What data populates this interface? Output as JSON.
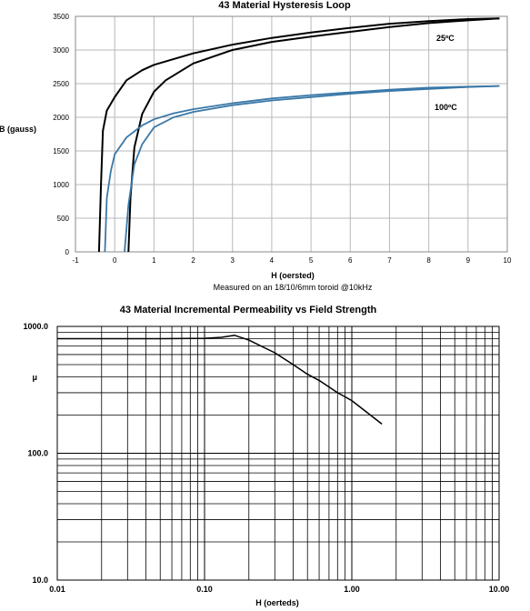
{
  "chart_data": [
    {
      "type": "line",
      "title": "43 Material Hysteresis Loop",
      "xlabel": "H (oersted)",
      "ylabel": "B (gauss)",
      "note": "Measured on an 18/10/6mm toroid @10kHz",
      "xlim": [
        -1,
        10
      ],
      "ylim": [
        0,
        3500
      ],
      "xticks": [
        "-1",
        "0",
        "1",
        "2",
        "3",
        "4",
        "5",
        "6",
        "7",
        "8",
        "9",
        "10"
      ],
      "yticks": [
        "0",
        "500",
        "1000",
        "1500",
        "2000",
        "2500",
        "3000",
        "3500"
      ],
      "grid": true,
      "colors": {
        "series_25": "#000000",
        "series_100": "#3a78a8"
      },
      "series": [
        {
          "name": "25ºC",
          "upper": [
            [
              -0.4,
              0
            ],
            [
              -0.35,
              1000
            ],
            [
              -0.3,
              1800
            ],
            [
              -0.2,
              2100
            ],
            [
              0,
              2300
            ],
            [
              0.3,
              2550
            ],
            [
              0.7,
              2700
            ],
            [
              1,
              2780
            ],
            [
              2,
              2950
            ],
            [
              3,
              3080
            ],
            [
              4,
              3180
            ],
            [
              5,
              3260
            ],
            [
              6,
              3330
            ],
            [
              7,
              3390
            ],
            [
              8,
              3430
            ],
            [
              9,
              3460
            ],
            [
              9.8,
              3470
            ]
          ],
          "lower": [
            [
              9.8,
              3470
            ],
            [
              9,
              3440
            ],
            [
              8,
              3400
            ],
            [
              7,
              3340
            ],
            [
              6,
              3270
            ],
            [
              5,
              3200
            ],
            [
              4,
              3120
            ],
            [
              3,
              3000
            ],
            [
              2,
              2800
            ],
            [
              1.3,
              2550
            ],
            [
              1,
              2380
            ],
            [
              0.7,
              2050
            ],
            [
              0.5,
              1550
            ],
            [
              0.4,
              800
            ],
            [
              0.35,
              0
            ]
          ]
        },
        {
          "name": "100ºC",
          "upper": [
            [
              -0.25,
              0
            ],
            [
              -0.2,
              800
            ],
            [
              -0.1,
              1200
            ],
            [
              0,
              1450
            ],
            [
              0.3,
              1700
            ],
            [
              0.7,
              1880
            ],
            [
              1,
              1970
            ],
            [
              1.5,
              2060
            ],
            [
              2,
              2120
            ],
            [
              3,
              2210
            ],
            [
              4,
              2280
            ],
            [
              5,
              2330
            ],
            [
              6,
              2370
            ],
            [
              7,
              2410
            ],
            [
              8,
              2440
            ],
            [
              9,
              2455
            ],
            [
              9.8,
              2465
            ]
          ],
          "lower": [
            [
              9.8,
              2465
            ],
            [
              9,
              2450
            ],
            [
              8,
              2420
            ],
            [
              7,
              2390
            ],
            [
              6,
              2350
            ],
            [
              5,
              2300
            ],
            [
              4,
              2250
            ],
            [
              3,
              2180
            ],
            [
              2,
              2080
            ],
            [
              1.5,
              2000
            ],
            [
              1,
              1850
            ],
            [
              0.7,
              1600
            ],
            [
              0.5,
              1300
            ],
            [
              0.35,
              700
            ],
            [
              0.25,
              0
            ]
          ]
        }
      ]
    },
    {
      "type": "line",
      "title": "43 Material Incremental Permeability vs Field Strength",
      "xlabel": "H (oerteds)",
      "ylabel": "μ",
      "xscale": "log",
      "yscale": "log",
      "xlim": [
        0.01,
        10
      ],
      "ylim": [
        10,
        1000
      ],
      "xticks": [
        "0.01",
        "0.10",
        "1.00",
        "10.00"
      ],
      "yticks": [
        "10.0",
        "100.0",
        "1000.0"
      ],
      "grid": true,
      "colors": {
        "line": "#000000"
      },
      "series": [
        {
          "x": [
            0.01,
            0.02,
            0.05,
            0.1,
            0.13,
            0.16,
            0.2,
            0.3,
            0.4,
            0.5,
            0.6,
            0.8,
            1.0,
            1.3,
            1.6
          ],
          "values": [
            800,
            800,
            800,
            805,
            820,
            850,
            780,
            620,
            500,
            420,
            375,
            300,
            260,
            205,
            170
          ]
        }
      ]
    }
  ]
}
